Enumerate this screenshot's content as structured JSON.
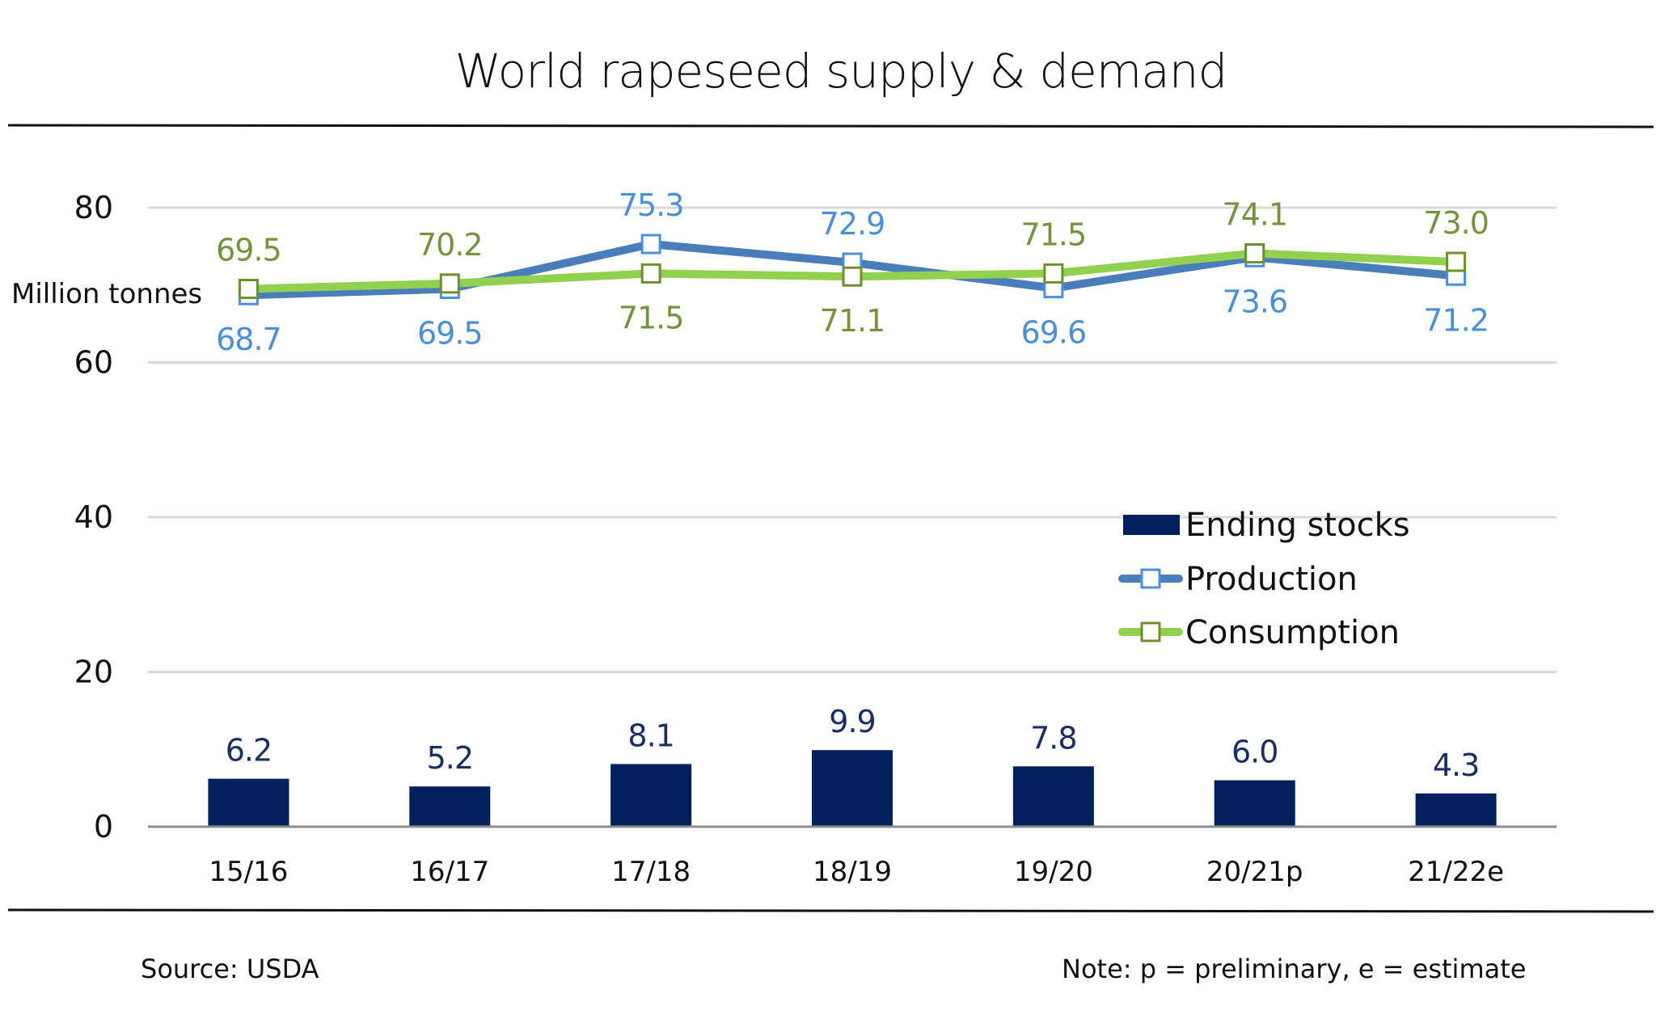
{
  "chart_data": {
    "type": "bar+line",
    "title": "World rapeseed supply & demand",
    "ylabel": "Million tonnes",
    "xlabel": "",
    "ylim": [
      0,
      80
    ],
    "yticks": [
      0,
      20,
      40,
      60,
      80
    ],
    "grid": true,
    "legend_position": "center-right",
    "categories": [
      "15/16",
      "16/17",
      "17/18",
      "18/19",
      "19/20",
      "20/21p",
      "21/22e"
    ],
    "series": [
      {
        "name": "Ending stocks",
        "type": "bar",
        "color": "#021f5e",
        "values": [
          6.2,
          5.2,
          8.1,
          9.9,
          7.8,
          6.0,
          4.3
        ],
        "labels": [
          "6.2",
          "5.2",
          "8.1",
          "9.9",
          "7.8",
          "6.0",
          "4.3"
        ]
      },
      {
        "name": "Production",
        "type": "line",
        "color": "#4a7ebb",
        "marker_color": "#4a90e2",
        "label_color": "#4a8fd8",
        "values": [
          68.7,
          69.5,
          75.3,
          72.9,
          69.6,
          73.6,
          71.2
        ],
        "labels": [
          "68.7",
          "69.5",
          "75.3",
          "72.9",
          "69.6",
          "73.6",
          "71.2"
        ],
        "label_positions": [
          "below",
          "below",
          "above",
          "above",
          "below",
          "below",
          "below"
        ]
      },
      {
        "name": "Consumption",
        "type": "line",
        "color": "#92d050",
        "marker_color": "#6f8f2f",
        "label_color": "#76923c",
        "values": [
          69.5,
          70.2,
          71.5,
          71.1,
          71.5,
          74.1,
          73.0
        ],
        "labels": [
          "69.5",
          "70.2",
          "71.5",
          "71.1",
          "71.5",
          "74.1",
          "73.0"
        ],
        "label_positions": [
          "above",
          "above",
          "below",
          "below",
          "above",
          "above",
          "above"
        ]
      }
    ],
    "annotations": {
      "source": "Source: USDA",
      "note": "Note: p = preliminary, e = estimate"
    }
  }
}
